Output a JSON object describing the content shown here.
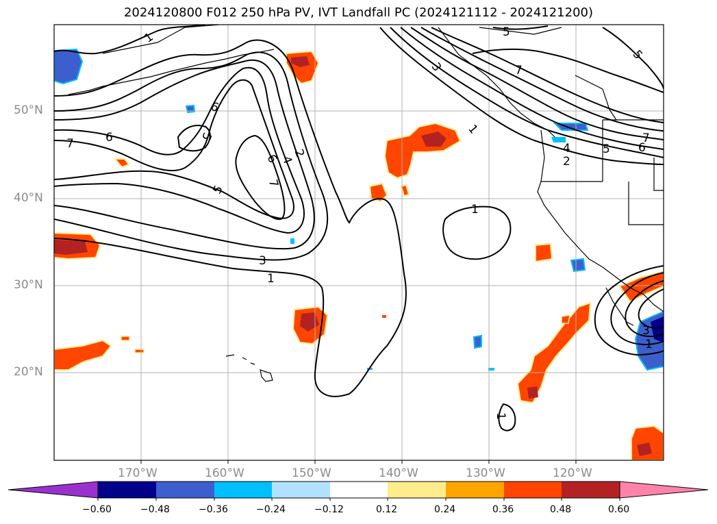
{
  "title": "2024120800 F012 250 hPa PV, IVT Landfall PC (2024121112 - 2024121200)",
  "lat_labels": [
    "50°N",
    "40°N",
    "30°N",
    "20°N"
  ],
  "lon_labels": [
    "170°W",
    "160°W",
    "150°W",
    "140°W",
    "130°W",
    "120°W"
  ],
  "colorbar": {
    "tick_labels": [
      "−0.60",
      "−0.48",
      "−0.36",
      "−0.24",
      "−0.12",
      "0.12",
      "0.24",
      "0.36",
      "0.48",
      "0.60"
    ],
    "colors": [
      "#9932cc",
      "#00008b",
      "#3c5fcd",
      "#00bfff",
      "#b0e2ff",
      "#ffffff",
      "#ffec8b",
      "#ffa500",
      "#ff4500",
      "#b22222",
      "#ff82ab"
    ]
  },
  "contour_labels": [
    "1",
    "5",
    "5",
    "3",
    "7",
    "6",
    "5",
    "6",
    "7",
    "6",
    "4",
    "2",
    "7",
    "5",
    "6",
    "4",
    "2",
    "7",
    "5",
    "6",
    "3",
    "1",
    "1",
    "1",
    "3",
    "1",
    "1"
  ]
}
